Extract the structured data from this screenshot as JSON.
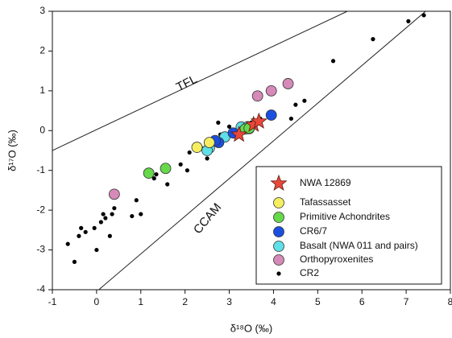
{
  "chart_data": {
    "type": "scatter",
    "xlabel": "δ¹⁸O (‰)",
    "ylabel": "δ¹⁷O (‰)",
    "xlim": [
      -1,
      8
    ],
    "ylim": [
      -4,
      3
    ],
    "xticks": [
      -1,
      0,
      1,
      2,
      3,
      4,
      5,
      6,
      7,
      8
    ],
    "yticks": [
      -4,
      -3,
      -2,
      -1,
      0,
      1,
      2,
      3
    ],
    "reference_lines": [
      {
        "label": "TFL",
        "x": [
          -1,
          5.67
        ],
        "y": [
          -0.5,
          3
        ]
      },
      {
        "label": "CCAM",
        "x": [
          0.05,
          7.44
        ],
        "y": [
          -4,
          3
        ]
      }
    ],
    "series": [
      {
        "name": "NWA 12869",
        "color": "#e8483a",
        "marker": "star",
        "x": [
          3.22,
          3.55,
          3.67
        ],
        "y": [
          -0.1,
          0.15,
          0.23
        ]
      },
      {
        "name": "Tafassasset",
        "color": "#f5ee60",
        "marker": "circle",
        "x": [
          2.27,
          2.55
        ],
        "y": [
          -0.42,
          -0.3
        ]
      },
      {
        "name": "Primitive Achondrites",
        "color": "#66d94b",
        "marker": "circle",
        "x": [
          1.18,
          1.56,
          3.36,
          3.45
        ],
        "y": [
          -1.07,
          -0.95,
          0.04,
          0.06
        ]
      },
      {
        "name": "CR6/7",
        "color": "#1b4fe0",
        "marker": "circle",
        "x": [
          2.76,
          2.68,
          3.09,
          3.95,
          3.45
        ],
        "y": [
          -0.3,
          -0.25,
          -0.06,
          0.39,
          0.05
        ]
      },
      {
        "name": "Basalt (NWA 011 and pairs)",
        "color": "#5fe0e8",
        "marker": "circle",
        "x": [
          2.55,
          2.9,
          3.27,
          3.42,
          2.5
        ],
        "y": [
          -0.44,
          -0.16,
          0.09,
          0.1,
          -0.5
        ]
      },
      {
        "name": "Orthopyroxenites",
        "color": "#d58ab8",
        "marker": "circle",
        "x": [
          0.4,
          3.64,
          3.95,
          4.33
        ],
        "y": [
          -1.6,
          0.87,
          1.0,
          1.18
        ]
      },
      {
        "name": "CR2",
        "color": "#000000",
        "marker": "dot",
        "x": [
          -0.65,
          -0.5,
          -0.4,
          -0.35,
          -0.25,
          -0.05,
          0.0,
          0.1,
          0.15,
          0.2,
          0.3,
          0.35,
          0.4,
          0.8,
          0.9,
          1.0,
          1.3,
          1.35,
          1.6,
          1.9,
          2.05,
          2.1,
          2.5,
          2.75,
          2.8,
          4.5,
          4.7,
          4.4,
          5.35,
          6.25,
          7.05,
          7.4,
          3.7,
          3.5,
          3.3,
          3.0,
          2.4
        ],
        "y": [
          -2.85,
          -3.3,
          -2.65,
          -2.45,
          -2.55,
          -2.45,
          -3.0,
          -2.3,
          -2.1,
          -2.2,
          -2.65,
          -2.1,
          -1.95,
          -2.15,
          -1.75,
          -2.1,
          -1.2,
          -1.1,
          -1.35,
          -0.85,
          -1.0,
          -0.55,
          -0.7,
          0.2,
          -0.1,
          0.65,
          0.75,
          0.3,
          1.75,
          2.3,
          2.75,
          2.9,
          0.3,
          0.2,
          0.05,
          0.1,
          -0.45
        ]
      }
    ]
  }
}
